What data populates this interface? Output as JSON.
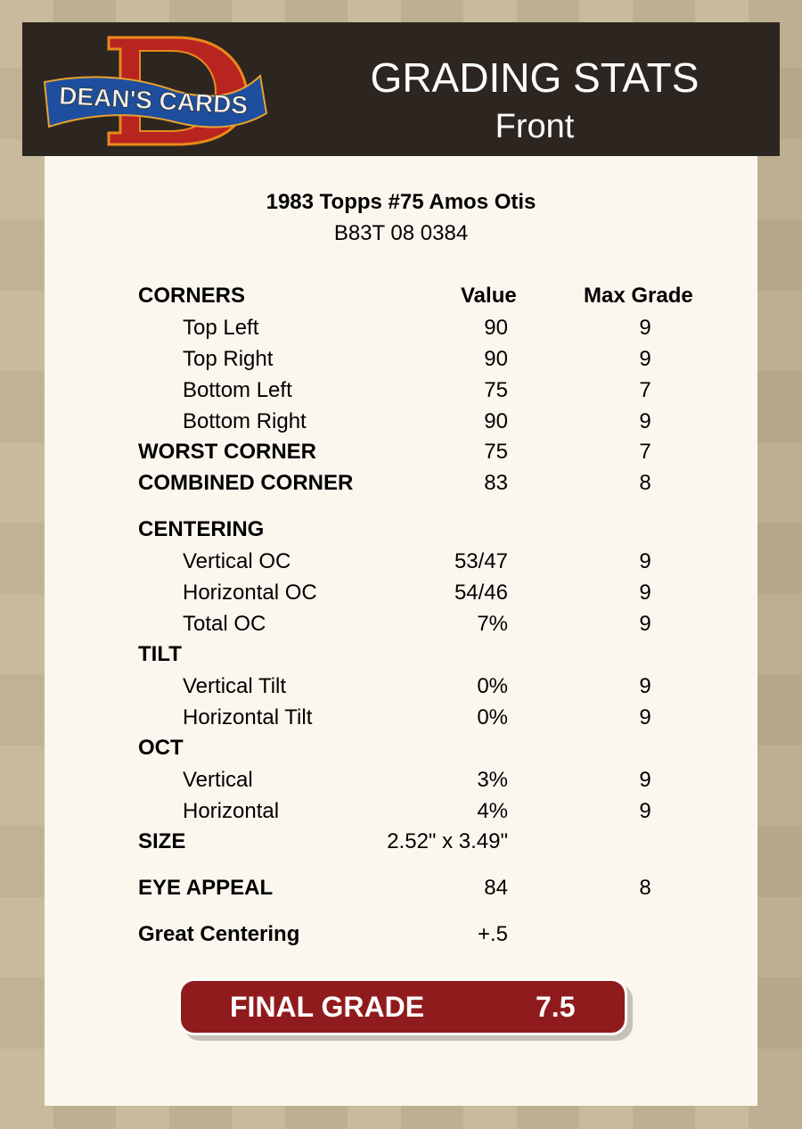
{
  "header": {
    "logo_text": "DEAN'S CARDS",
    "title": "GRADING STATS",
    "subtitle": "Front"
  },
  "card": {
    "name": "1983 Topps #75 Amos Otis",
    "code": "B83T 08 0384"
  },
  "columns": {
    "value": "Value",
    "max_grade": "Max Grade"
  },
  "rows": [
    {
      "label": "CORNERS",
      "type": "hdr",
      "value": "",
      "max": ""
    },
    {
      "label": "Top Left",
      "type": "sub",
      "value": "90",
      "max": "9"
    },
    {
      "label": "Top Right",
      "type": "sub",
      "value": "90",
      "max": "9"
    },
    {
      "label": "Bottom Left",
      "type": "sub",
      "value": "75",
      "max": "7"
    },
    {
      "label": "Bottom Right",
      "type": "sub",
      "value": "90",
      "max": "9"
    },
    {
      "label": "WORST CORNER",
      "type": "hdr",
      "value": "75",
      "max": "7"
    },
    {
      "label": "COMBINED CORNER",
      "type": "hdr",
      "value": "83",
      "max": "8"
    },
    {
      "label": "CENTERING",
      "type": "hdr",
      "value": "",
      "max": ""
    },
    {
      "label": "Vertical OC",
      "type": "sub",
      "value": "53/47",
      "max": "9"
    },
    {
      "label": "Horizontal OC",
      "type": "sub",
      "value": "54/46",
      "max": "9"
    },
    {
      "label": "Total OC",
      "type": "sub",
      "value": "7%",
      "max": "9"
    },
    {
      "label": "TILT",
      "type": "hdr",
      "value": "",
      "max": ""
    },
    {
      "label": "Vertical Tilt",
      "type": "sub",
      "value": "0%",
      "max": "9"
    },
    {
      "label": "Horizontal Tilt",
      "type": "sub",
      "value": "0%",
      "max": "9"
    },
    {
      "label": "OCT",
      "type": "hdr",
      "value": "",
      "max": ""
    },
    {
      "label": "Vertical",
      "type": "sub",
      "value": "3%",
      "max": "9"
    },
    {
      "label": "Horizontal",
      "type": "sub",
      "value": "4%",
      "max": "9"
    },
    {
      "label": "SIZE",
      "type": "hdr",
      "value": "2.52\" x 3.49\"",
      "max": ""
    },
    {
      "label": "EYE APPEAL",
      "type": "hdr",
      "value": "84",
      "max": "8"
    },
    {
      "label": "Great Centering",
      "type": "hdr",
      "value": "+.5",
      "max": ""
    }
  ],
  "final": {
    "label": "FINAL GRADE",
    "value": "7.5",
    "color": "#901b1d"
  }
}
